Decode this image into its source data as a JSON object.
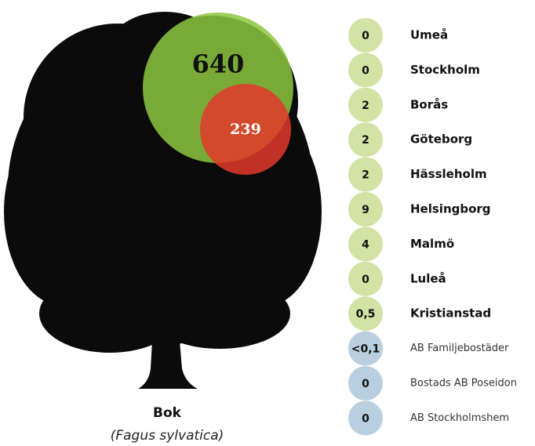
{
  "tree": {
    "name": "Bok",
    "latin": "(Fagus sylvatica)",
    "big_value": "640",
    "big_color": "#8dc63f",
    "small_value": "239",
    "small_color": "#e2382a"
  },
  "municipalities": {
    "color": "#d3e3a5",
    "rows": [
      {
        "value": "0",
        "label": "Umeå"
      },
      {
        "value": "0",
        "label": "Stockholm"
      },
      {
        "value": "2",
        "label": "Borås"
      },
      {
        "value": "2",
        "label": "Göteborg"
      },
      {
        "value": "2",
        "label": "Hässleholm"
      },
      {
        "value": "9",
        "label": "Helsingborg"
      },
      {
        "value": "4",
        "label": "Malmö"
      },
      {
        "value": "0",
        "label": "Luleå"
      },
      {
        "value": "0,5",
        "label": "Kristianstad"
      }
    ]
  },
  "companies": {
    "color": "#b9cfdf",
    "rows": [
      {
        "value": "<0,1",
        "label": "AB Familjebostäder"
      },
      {
        "value": "0",
        "label": "Bostads AB Poseidon"
      },
      {
        "value": "0",
        "label": "AB Stockholmshem"
      }
    ]
  }
}
